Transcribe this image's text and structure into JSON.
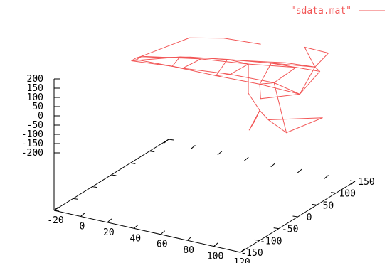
{
  "chart_data": {
    "type": "line",
    "variant": "3d-wireframe",
    "legend": {
      "label": "\"sdata.mat\"",
      "placement": "top-right"
    },
    "colors": {
      "series": "#f25555",
      "axes": "#000000"
    },
    "x_axis": {
      "ticks": [
        "-20",
        "0",
        "20",
        "40",
        "60",
        "80",
        "100",
        "120"
      ],
      "range": [
        -20,
        120
      ]
    },
    "y_axis": {
      "ticks": [
        "-150",
        "-100",
        "-50",
        "0",
        "50",
        "100",
        "150"
      ],
      "range": [
        -150,
        150
      ]
    },
    "z_axis": {
      "ticks": [
        "200",
        "150",
        "100",
        "50",
        "0",
        "-50",
        "-100",
        "-150",
        "-200"
      ],
      "range": [
        -200,
        200
      ]
    },
    "grid": false,
    "series": [
      {
        "name": "\"sdata.mat\"",
        "lines": [
          [
            [
              -5,
              0,
              130
            ],
            [
              -4,
              10,
              135
            ],
            [
              -3,
              20,
              132
            ],
            [
              -4,
              10,
              125
            ],
            [
              -5,
              0,
              130
            ]
          ],
          [
            [
              -5,
              0,
              130
            ],
            [
              20,
              40,
              140
            ],
            [
              50,
              60,
              150
            ],
            [
              80,
              70,
              165
            ],
            [
              110,
              80,
              180
            ]
          ],
          [
            [
              -5,
              0,
              130
            ],
            [
              20,
              20,
              115
            ],
            [
              50,
              30,
              100
            ],
            [
              80,
              40,
              90
            ],
            [
              110,
              40,
              85
            ]
          ],
          [
            [
              -4,
              10,
              135
            ],
            [
              25,
              50,
              135
            ],
            [
              55,
              70,
              140
            ],
            [
              85,
              90,
              150
            ],
            [
              110,
              80,
              180
            ]
          ],
          [
            [
              -3,
              20,
              132
            ],
            [
              30,
              60,
              120
            ],
            [
              60,
              80,
              115
            ],
            [
              90,
              100,
              120
            ],
            [
              105,
              110,
              110
            ]
          ],
          [
            [
              -4,
              10,
              125
            ],
            [
              25,
              30,
              100
            ],
            [
              55,
              50,
              90
            ],
            [
              85,
              60,
              80
            ],
            [
              110,
              40,
              85
            ]
          ],
          [
            [
              20,
              40,
              140
            ],
            [
              20,
              20,
              115
            ],
            [
              25,
              30,
              100
            ],
            [
              30,
              60,
              120
            ],
            [
              20,
              40,
              140
            ]
          ],
          [
            [
              50,
              60,
              150
            ],
            [
              50,
              30,
              100
            ],
            [
              55,
              50,
              90
            ],
            [
              60,
              80,
              115
            ],
            [
              50,
              60,
              150
            ]
          ],
          [
            [
              80,
              70,
              165
            ],
            [
              80,
              40,
              90
            ],
            [
              85,
              60,
              80
            ],
            [
              90,
              100,
              120
            ],
            [
              80,
              70,
              165
            ]
          ],
          [
            [
              110,
              80,
              180
            ],
            [
              110,
              40,
              85
            ],
            [
              105,
              110,
              110
            ],
            [
              110,
              80,
              180
            ]
          ],
          [
            [
              60,
              80,
              115
            ],
            [
              80,
              10,
              80
            ],
            [
              100,
              -30,
              70
            ],
            [
              105,
              -60,
              60
            ]
          ],
          [
            [
              100,
              -30,
              70
            ],
            [
              115,
              -110,
              90
            ],
            [
              105,
              -60,
              60
            ]
          ],
          [
            [
              85,
              60,
              80
            ],
            [
              100,
              40,
              -140
            ],
            [
              95,
              10,
              -40
            ],
            [
              100,
              -30,
              70
            ]
          ],
          [
            [
              110,
              80,
              180
            ],
            [
              100,
              150,
              150
            ],
            [
              85,
              140,
              170
            ],
            [
              110,
              80,
              180
            ]
          ],
          [
            [
              100,
              40,
              -140
            ],
            [
              110,
              100,
              -120
            ],
            [
              95,
              10,
              -40
            ]
          ],
          [
            [
              -3,
              20,
              132
            ],
            [
              10,
              100,
              150
            ],
            [
              30,
              120,
              155
            ],
            [
              55,
              130,
              150
            ]
          ],
          [
            [
              80,
              40,
              90
            ],
            [
              95,
              -10,
              100
            ],
            [
              110,
              40,
              85
            ]
          ]
        ]
      }
    ]
  }
}
